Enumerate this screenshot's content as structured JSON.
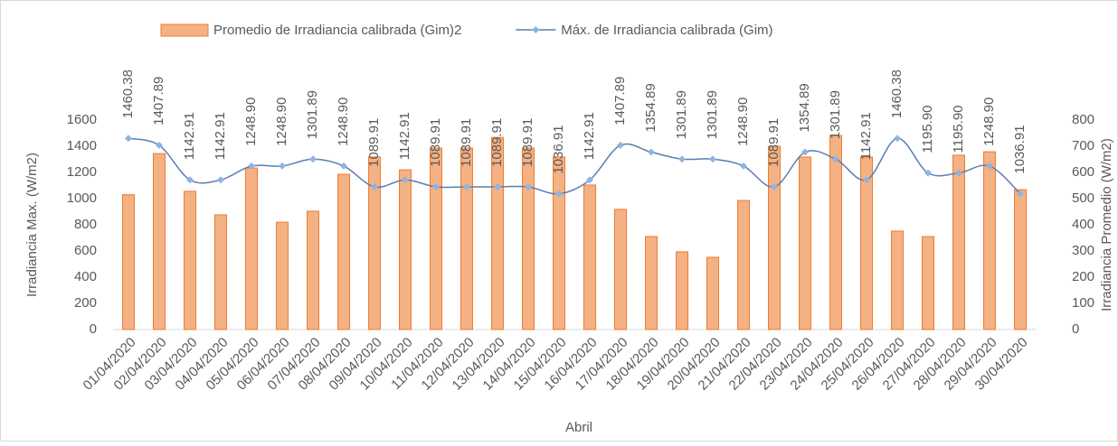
{
  "chart_data": {
    "type": "bar-line",
    "x_label": "Abril",
    "y_label": "Irradiancia Max. (W/m2)",
    "y2_label": "Irradiancia Promedio (W/m2)",
    "categories": [
      "01/04/2020",
      "02/04/2020",
      "03/04/2020",
      "04/04/2020",
      "05/04/2020",
      "06/04/2020",
      "07/04/2020",
      "08/04/2020",
      "09/04/2020",
      "10/04/2020",
      "11/04/2020",
      "12/04/2020",
      "13/04/2020",
      "14/04/2020",
      "15/04/2020",
      "16/04/2020",
      "17/04/2020",
      "18/04/2020",
      "19/04/2020",
      "20/04/2020",
      "21/04/2020",
      "22/04/2020",
      "23/04/2020",
      "24/04/2020",
      "25/04/2020",
      "26/04/2020",
      "27/04/2020",
      "28/04/2020",
      "29/04/2020",
      "30/04/2020"
    ],
    "series": [
      {
        "name": "Promedio de Irradiancia calibrada (Gim)2",
        "type": "bar",
        "axis": "y2",
        "color": "#f4b183",
        "edge": "#ed7d31",
        "values": [
          515,
          672,
          528,
          438,
          617,
          410,
          452,
          593,
          659,
          610,
          693,
          693,
          734,
          693,
          659,
          552,
          459,
          355,
          297,
          276,
          493,
          700,
          659,
          741,
          659,
          376,
          355,
          666,
          679,
          534
        ]
      },
      {
        "name": "Máx. de Irradiancia calibrada (Gim)",
        "type": "line",
        "axis": "y",
        "color": "#5b7db1",
        "marker_color": "#8fb4e3",
        "values": [
          1460.38,
          1407.89,
          1142.91,
          1142.91,
          1248.9,
          1248.9,
          1301.89,
          1248.9,
          1089.91,
          1142.91,
          1089.91,
          1089.91,
          1089.91,
          1089.91,
          1036.91,
          1142.91,
          1407.89,
          1354.89,
          1301.89,
          1301.89,
          1248.9,
          1089.91,
          1354.89,
          1301.89,
          1142.91,
          1460.38,
          1195.9,
          1195.9,
          1248.9,
          1036.91
        ],
        "value_labels": [
          "1460.38",
          "1407.89",
          "1142.91",
          "1142.91",
          "1248.90",
          "1248.90",
          "1301.89",
          "1248.90",
          "1089.91",
          "1142.91",
          "1089.91",
          "1089.91",
          "1089.91",
          "1089.91",
          "1036.91",
          "1142.91",
          "1407.89",
          "1354.89",
          "1301.89",
          "1301.89",
          "1248.90",
          "1089.91",
          "1354.89",
          "1301.89",
          "1142.91",
          "1460.38",
          "1195.90",
          "1195.90",
          "1248.90",
          "1036.91"
        ]
      }
    ],
    "ylim": [
      0,
      1600
    ],
    "yticks": [
      0,
      200,
      400,
      600,
      800,
      1000,
      1200,
      1400,
      1600
    ],
    "y2lim": [
      0,
      800
    ],
    "y2ticks": [
      0,
      100,
      200,
      300,
      400,
      500,
      600,
      700,
      800
    ],
    "grid": false,
    "legend": "top"
  }
}
